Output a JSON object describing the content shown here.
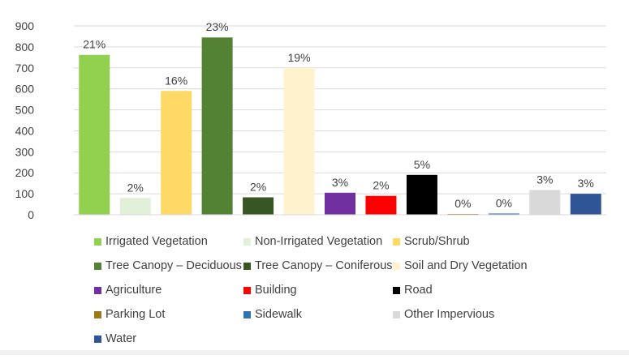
{
  "chart_data": {
    "type": "bar",
    "title": "",
    "xlabel": "",
    "ylabel": "",
    "ylim": [
      0,
      900
    ],
    "yticks": [
      0,
      100,
      200,
      300,
      400,
      500,
      600,
      700,
      800,
      900
    ],
    "grid": true,
    "legend_position": "bottom",
    "categories": [
      "Irrigated Vegetation",
      "Non-Irrigated Vegetation",
      "Scrub/Shrub",
      "Tree Canopy – Deciduous",
      "Tree Canopy – Coniferous",
      "Soil and Dry Vegetation",
      "Agriculture",
      "Building",
      "Road",
      "Parking Lot",
      "Sidewalk",
      "Other Impervious",
      "Water"
    ],
    "values": [
      762,
      80,
      590,
      845,
      83,
      700,
      105,
      90,
      190,
      4,
      6,
      118,
      100
    ],
    "data_labels": [
      "21%",
      "2%",
      "16%",
      "23%",
      "2%",
      "19%",
      "3%",
      "2%",
      "5%",
      "0%",
      "0%",
      "3%",
      "3%"
    ],
    "colors": [
      "#92d050",
      "#e2f0d9",
      "#ffd966",
      "#548235",
      "#375623",
      "#fff2cc",
      "#7030a0",
      "#ff0000",
      "#000000",
      "#9c7a1c",
      "#2e75b6",
      "#d9d9d9",
      "#2f5597"
    ]
  }
}
